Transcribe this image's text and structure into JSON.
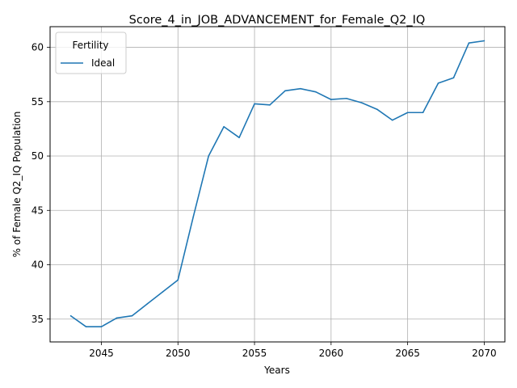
{
  "chart_data": {
    "type": "line",
    "title": "Score_4_in_JOB_ADVANCEMENT_for_Female_Q2_IQ",
    "xlabel": "Years",
    "ylabel": "% of Female Q2_IQ Population",
    "xlim": [
      2041.65,
      2071.35
    ],
    "ylim": [
      32.9,
      61.9
    ],
    "xticks": [
      2045,
      2050,
      2055,
      2060,
      2065,
      2070
    ],
    "yticks": [
      35,
      40,
      45,
      50,
      55,
      60
    ],
    "grid": true,
    "legend": {
      "title": "Fertility",
      "placement": "top-left"
    },
    "series": [
      {
        "name": "Ideal",
        "color": "#1f77b4",
        "x": [
          2043,
          2044,
          2045,
          2046,
          2047,
          2048,
          2049,
          2050,
          2051,
          2052,
          2053,
          2054,
          2055,
          2056,
          2057,
          2058,
          2059,
          2060,
          2061,
          2062,
          2063,
          2064,
          2065,
          2066,
          2067,
          2068,
          2069,
          2070
        ],
        "y": [
          35.3,
          34.3,
          34.3,
          35.1,
          35.3,
          36.4,
          37.5,
          38.6,
          44.4,
          50.0,
          52.7,
          51.7,
          54.8,
          54.7,
          56.0,
          56.2,
          55.9,
          55.2,
          55.3,
          54.9,
          54.3,
          53.3,
          54.0,
          54.0,
          56.7,
          57.2,
          60.4,
          60.6
        ]
      }
    ]
  }
}
